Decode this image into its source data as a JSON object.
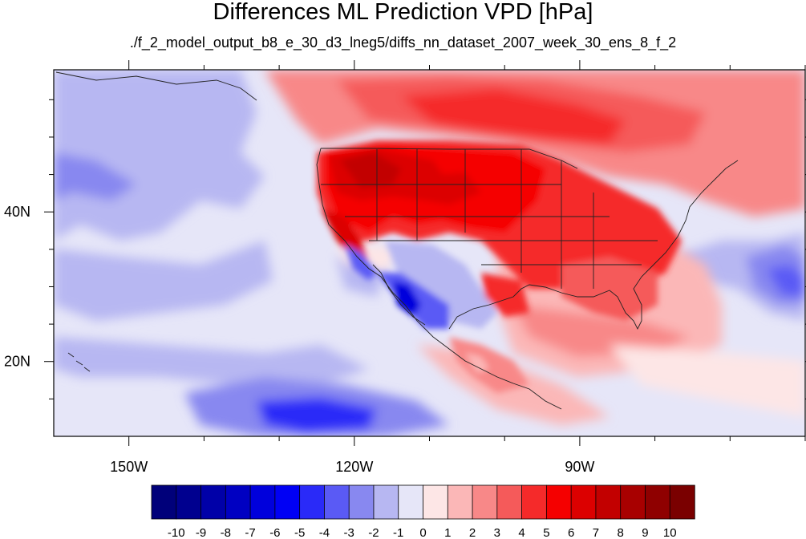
{
  "title": "Differences ML Prediction VPD [hPa]",
  "subtitle": "./f_2_model_output_b8_e_30_d3_lneg5/diffs_nn_dataset_2007_week_30_ens_8_f_2",
  "map": {
    "projection": "cylindrical-equidistant",
    "lon_range": [
      -160,
      -60
    ],
    "lat_range": [
      10,
      59
    ],
    "lon_ticks": [
      {
        "value": -150,
        "label": "150W"
      },
      {
        "value": -120,
        "label": "120W"
      },
      {
        "value": -90,
        "label": "90W"
      }
    ],
    "lat_ticks": [
      {
        "value": 40,
        "label": "40N"
      },
      {
        "value": 20,
        "label": "20N"
      }
    ]
  },
  "colorbar": {
    "labels": [
      "-10",
      "-9",
      "-8",
      "-7",
      "-6",
      "-5",
      "-4",
      "-3",
      "-2",
      "-1",
      "0",
      "1",
      "2",
      "3",
      "4",
      "5",
      "6",
      "7",
      "8",
      "9",
      "10"
    ],
    "colors": [
      "#00007a",
      "#00008f",
      "#0000a8",
      "#0000c2",
      "#0000dc",
      "#0000f5",
      "#2a2af8",
      "#5a5af5",
      "#8888f0",
      "#b7b7f2",
      "#e6e6f8",
      "#fde6e6",
      "#fbb7b7",
      "#f88888",
      "#f55a5a",
      "#f52a2a",
      "#f50000",
      "#dc0000",
      "#c20000",
      "#a80000",
      "#8f0000",
      "#7a0000"
    ]
  }
}
